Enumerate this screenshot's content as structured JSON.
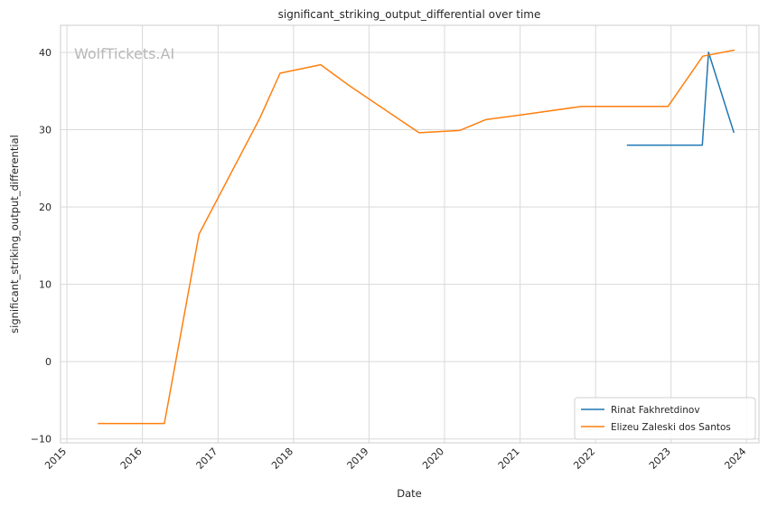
{
  "chart_data": {
    "type": "line",
    "title": "significant_striking_output_differential over time",
    "xlabel": "Date",
    "ylabel": "significant_striking_output_differential",
    "watermark": "WolfTickets.AI",
    "x_ticks": [
      "2015",
      "2016",
      "2017",
      "2018",
      "2019",
      "2020",
      "2021",
      "2022",
      "2023",
      "2024"
    ],
    "y_ticks": [
      -10,
      0,
      10,
      20,
      30,
      40
    ],
    "xlim": [
      "2014-12-01",
      "2024-03-01"
    ],
    "ylim": [
      -10.5,
      43.5
    ],
    "grid": true,
    "legend_position": "lower-right",
    "series": [
      {
        "name": "Rinat Fakhretdinov",
        "color": "#1f77b4",
        "points": [
          {
            "x": "2022-06-01",
            "y": 28.0
          },
          {
            "x": "2023-06-01",
            "y": 28.0
          },
          {
            "x": "2023-07-01",
            "y": 40.0
          },
          {
            "x": "2023-11-01",
            "y": 29.6
          }
        ]
      },
      {
        "name": "Elizeu Zaleski dos Santos",
        "color": "#ff7f0e",
        "points": [
          {
            "x": "2015-05-30",
            "y": -8.0
          },
          {
            "x": "2016-04-16",
            "y": -8.0
          },
          {
            "x": "2016-10-01",
            "y": 16.5
          },
          {
            "x": "2017-07-22",
            "y": 31.5
          },
          {
            "x": "2017-10-28",
            "y": 37.3
          },
          {
            "x": "2018-05-12",
            "y": 38.4
          },
          {
            "x": "2018-09-22",
            "y": 35.8
          },
          {
            "x": "2019-08-31",
            "y": 29.6
          },
          {
            "x": "2020-03-14",
            "y": 29.9
          },
          {
            "x": "2020-07-18",
            "y": 31.3
          },
          {
            "x": "2021-01-30",
            "y": 32.0
          },
          {
            "x": "2021-10-23",
            "y": 33.0
          },
          {
            "x": "2022-12-17",
            "y": 33.0
          },
          {
            "x": "2023-06-03",
            "y": 39.5
          },
          {
            "x": "2023-11-04",
            "y": 40.3
          }
        ]
      }
    ]
  }
}
